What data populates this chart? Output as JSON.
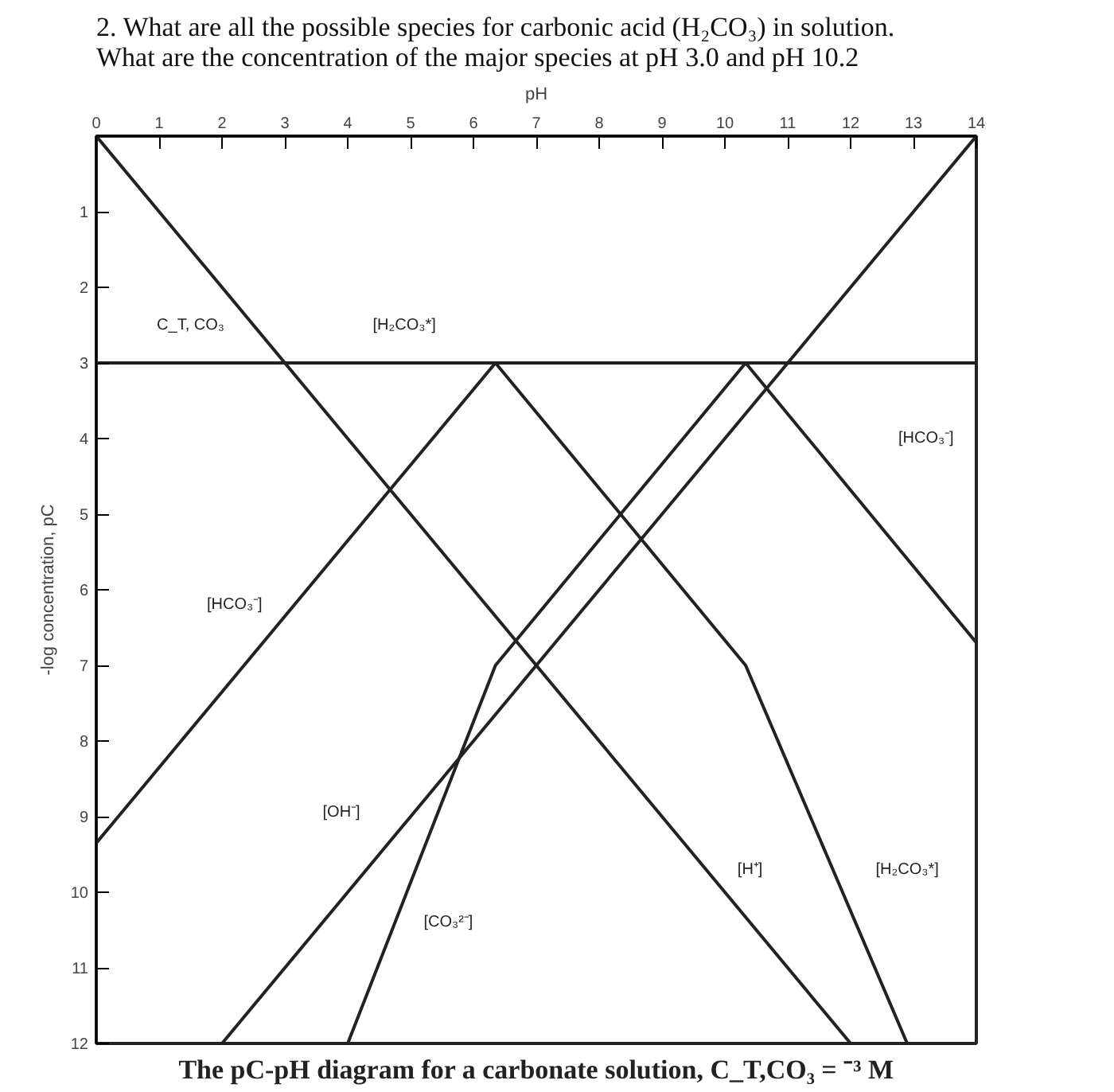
{
  "chart_data": {
    "type": "line",
    "title": "2. What are all the possible species for carbonic acid (H₂CO₃) in solution.\nWhat are the concentration of the major species at pH 3.0 and pH 10.2",
    "xlabel": "pH",
    "ylabel": "-log concentration, pC",
    "xlim": [
      0,
      14
    ],
    "ylim": [
      12,
      0
    ],
    "xticks": [
      0,
      1,
      2,
      3,
      4,
      5,
      6,
      7,
      8,
      9,
      10,
      11,
      12,
      13,
      14
    ],
    "yticks": [
      1,
      2,
      3,
      4,
      5,
      6,
      7,
      8,
      9,
      10,
      11,
      12
    ],
    "grid": false,
    "marker": "none",
    "line_style": "solid",
    "series": [
      {
        "color": "#222222",
        "x": [
          0,
          14
        ],
        "values": [
          3,
          3
        ]
      },
      {
        "color": "#222222",
        "x": [
          0,
          12
        ],
        "values": [
          0,
          12
        ]
      },
      {
        "color": "#222222",
        "x": [
          2,
          14
        ],
        "values": [
          12,
          0
        ]
      },
      {
        "color": "#222222",
        "x": [
          6.35,
          10.33,
          12.9
        ],
        "values": [
          3,
          7,
          12
        ]
      },
      {
        "color": "#222222",
        "x": [
          0,
          6.35,
          8,
          10.33,
          14
        ],
        "values": [
          9.35,
          3,
          null,
          3,
          6.7
        ]
      },
      {
        "color": "#222222",
        "x": [
          4,
          6.35,
          10.33
        ],
        "values": [
          12,
          7,
          3
        ]
      }
    ],
    "annotations": [
      "C_T, CO₃",
      "[H₂CO₃*]",
      "[HCO₃⁻]",
      "[HCO₃⁻]",
      "[OH⁻]",
      "[H⁺]",
      "[H₂CO₃*]",
      "[CO₃²⁻]",
      "The pC-pH diagram for a carbonate solution, C_T,CO₃ = ⁻³ M"
    ]
  }
}
